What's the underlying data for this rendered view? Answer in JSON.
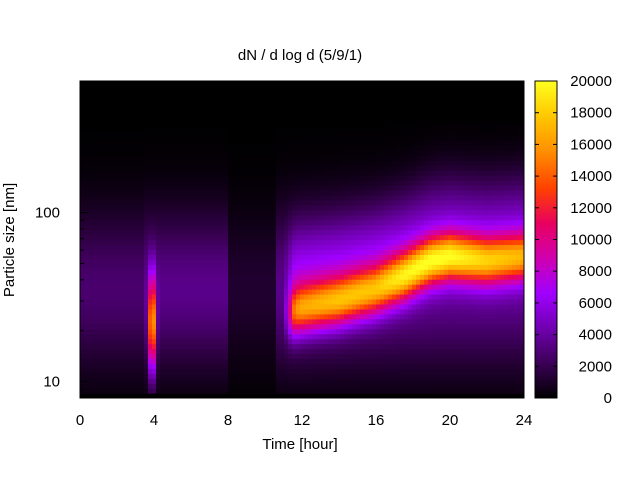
{
  "chart_data": {
    "type": "heatmap",
    "title": "dN / d log d (5/9/1)",
    "xlabel": "Time [hour]",
    "ylabel": "Particle size [nm]",
    "xlim": [
      0,
      24
    ],
    "ylim": [
      8,
      600
    ],
    "y_scale": "log",
    "x_ticks": [
      "0",
      "4",
      "8",
      "12",
      "16",
      "20",
      "24"
    ],
    "y_ticks": [
      "10",
      "100"
    ],
    "colorbar": {
      "min": 0,
      "max": 20000,
      "ticks": [
        "0",
        "2000",
        "4000",
        "6000",
        "8000",
        "10000",
        "12000",
        "14000",
        "16000",
        "18000",
        "20000"
      ],
      "palette": [
        "#000000",
        "#3b0056",
        "#7000b0",
        "#a000ff",
        "#d000b0",
        "#e80060",
        "#ff4000",
        "#ff9000",
        "#ffc800",
        "#ffff20"
      ]
    },
    "time_hours": [
      0,
      2,
      3.5,
      3.9,
      4.3,
      6,
      8,
      9.5,
      10.5,
      11.2,
      12,
      14,
      16,
      17.5,
      19,
      20,
      22,
      24
    ],
    "mode_diameter_nm": [
      null,
      null,
      null,
      22,
      null,
      null,
      null,
      null,
      null,
      25,
      27,
      30,
      35,
      42,
      52,
      55,
      52,
      55
    ],
    "peak_concentration": [
      1500,
      2000,
      2500,
      18000,
      3000,
      3000,
      3000,
      1000,
      3000,
      9000,
      11000,
      12000,
      12000,
      14000,
      15000,
      15000,
      13000,
      12000
    ],
    "grid": false,
    "legend": "colorbar-right"
  }
}
